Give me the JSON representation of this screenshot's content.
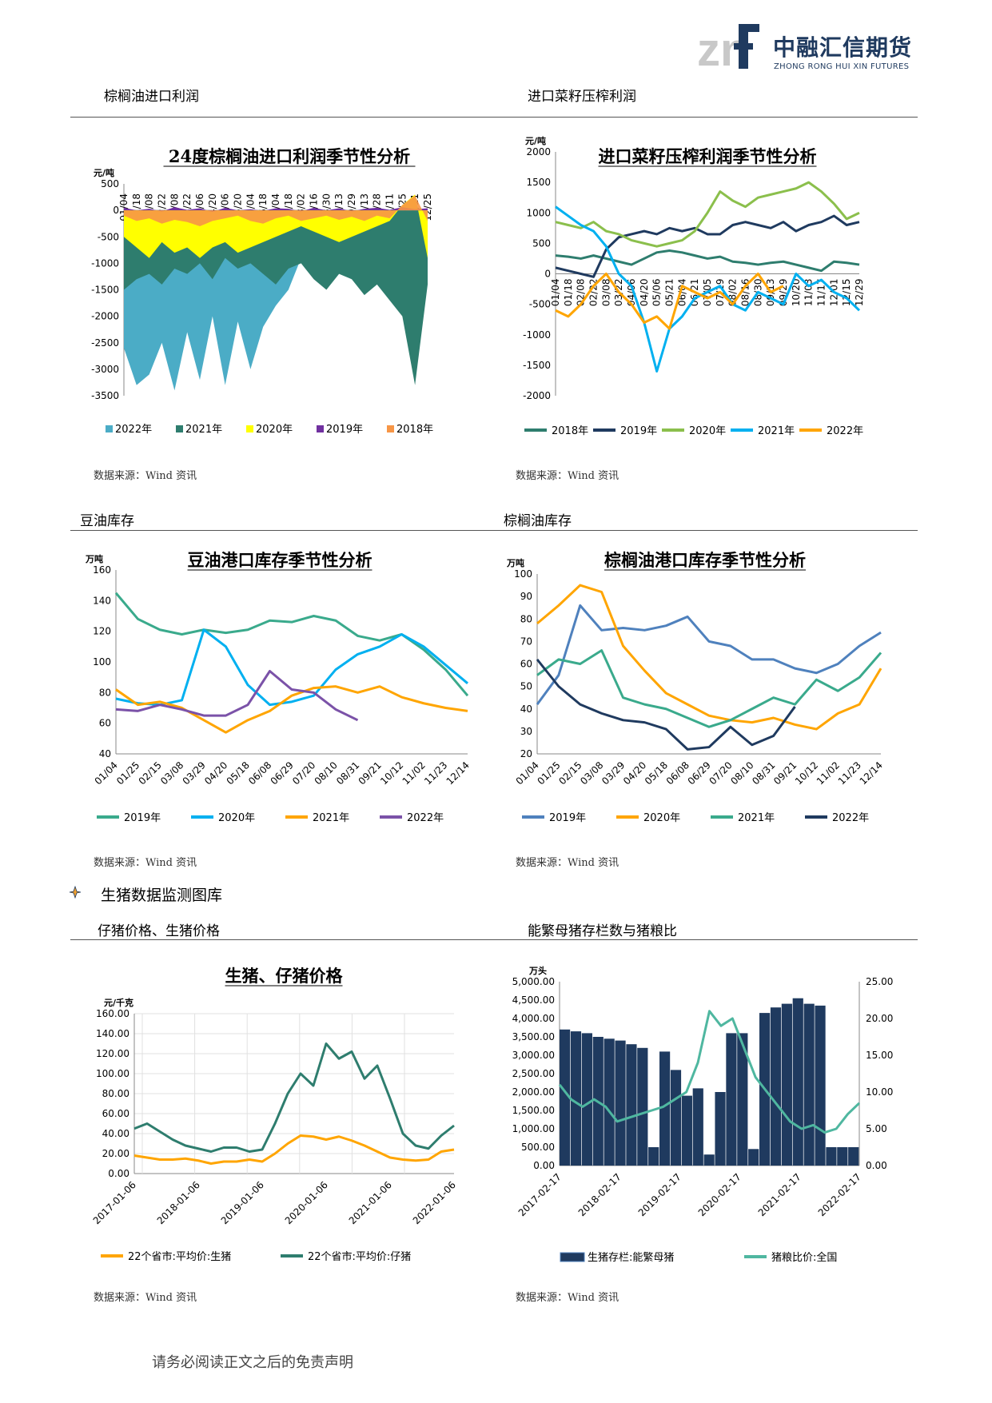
{
  "header": {
    "logo_cn": "中融汇信期货",
    "logo_en": "ZHONG RONG HUI XIN FUTURES"
  },
  "sections": {
    "s1_left": "棕榈油进口利润",
    "s1_right": "进口菜籽压榨利润",
    "s2_left": "豆油库存",
    "s2_right": "棕榈油库存",
    "hog_heading": "生猪数据监测图库",
    "s3_left": "仔猪价格、生猪价格",
    "s3_right": "能繁母猪存栏数与猪粮比"
  },
  "source_text": "数据来源：Wind 资讯",
  "footer": "请务必阅读正文之后的免责声明",
  "chart_data": [
    {
      "id": "palm-import-profit",
      "type": "area",
      "title": "24度棕榈油进口利润季节性分析",
      "unit": "元/吨",
      "ylim": [
        -3500,
        500
      ],
      "yticks": [
        "500",
        "0",
        "-500",
        "-1000",
        "-1500",
        "-2000",
        "-2500",
        "-3000",
        "-3500"
      ],
      "xticks": [
        "01/04",
        "01/18",
        "02/08",
        "02/22",
        "03/08",
        "03/22",
        "04/06",
        "04/20",
        "05/06",
        "05/20",
        "06/04",
        "06/18",
        "07/04",
        "07/18",
        "08/02",
        "08/16",
        "08/30",
        "09/13",
        "09/29",
        "10/13",
        "10/28",
        "11/11",
        "11/25",
        "12/11",
        "12/25"
      ],
      "series": [
        {
          "name": "2022年",
          "color": "#4bacc6",
          "values": [
            -2600,
            -3300,
            -3100,
            -2500,
            -3400,
            -2300,
            -3200,
            -2000,
            -3300,
            -2100,
            -3000,
            -2200,
            -1800,
            -1500,
            -900,
            -700,
            -1100,
            -600,
            -400,
            -700,
            -500,
            -600,
            -600,
            -400,
            -400
          ]
        },
        {
          "name": "2021年",
          "color": "#2e7d6e",
          "values": [
            -1500,
            -1300,
            -1200,
            -1400,
            -1100,
            -1200,
            -1000,
            -1300,
            -900,
            -1100,
            -1000,
            -1200,
            -1400,
            -1100,
            -1000,
            -1300,
            -1500,
            -1200,
            -1300,
            -1600,
            -1400,
            -1700,
            -2000,
            -3300,
            -1400
          ]
        },
        {
          "name": "2020年",
          "color": "#ffff00",
          "values": [
            -500,
            -700,
            -900,
            -600,
            -800,
            -700,
            -900,
            -700,
            -600,
            -800,
            -700,
            -600,
            -500,
            -400,
            -300,
            -400,
            -500,
            -600,
            -500,
            -400,
            -300,
            -200,
            100,
            300,
            -900
          ]
        },
        {
          "name": "2019年",
          "color": "#7030a0",
          "values": [
            50,
            0,
            30,
            -20,
            60,
            10,
            40,
            -30,
            50,
            0,
            20,
            -10,
            40,
            30,
            -20,
            50,
            0,
            40,
            -20,
            30,
            50,
            10,
            60,
            20,
            40
          ]
        },
        {
          "name": "2018年",
          "color": "#f79646",
          "values": [
            -100,
            -200,
            -150,
            -250,
            -180,
            -220,
            -300,
            -200,
            -150,
            -100,
            -200,
            -250,
            -150,
            -100,
            -200,
            -150,
            -100,
            -180,
            -120,
            -200,
            -100,
            -150,
            100,
            280,
            -200
          ]
        }
      ]
    },
    {
      "id": "rapeseed-crush-profit",
      "type": "line",
      "title": "进口菜籽压榨利润季节性分析",
      "unit": "元/吨",
      "ylim": [
        -2000,
        2000
      ],
      "yticks": [
        "2000",
        "1500",
        "1000",
        "500",
        "0",
        "-500",
        "-1000",
        "-1500",
        "-2000"
      ],
      "xticks": [
        "01/04",
        "01/18",
        "02/08",
        "02/22",
        "03/08",
        "03/22",
        "04/06",
        "04/20",
        "05/06",
        "05/21",
        "06/04",
        "06/21",
        "07/05",
        "07/19",
        "08/02",
        "08/16",
        "08/30",
        "09/13",
        "09/29",
        "10/20",
        "11/03",
        "11/17",
        "12/01",
        "12/15",
        "12/29"
      ],
      "series": [
        {
          "name": "2018年",
          "color": "#2e7d6e",
          "values": [
            300,
            280,
            250,
            300,
            250,
            200,
            150,
            250,
            350,
            380,
            350,
            300,
            250,
            280,
            200,
            180,
            150,
            180,
            200,
            150,
            100,
            50,
            200,
            180,
            150
          ]
        },
        {
          "name": "2019年",
          "color": "#1f3a5f",
          "values": [
            100,
            50,
            0,
            -50,
            400,
            600,
            650,
            700,
            650,
            750,
            700,
            750,
            650,
            650,
            800,
            850,
            800,
            750,
            850,
            700,
            800,
            850,
            950,
            800,
            850
          ]
        },
        {
          "name": "2020年",
          "color": "#8bbf4c",
          "values": [
            850,
            800,
            750,
            850,
            700,
            650,
            550,
            500,
            450,
            500,
            550,
            700,
            1000,
            1350,
            1200,
            1100,
            1250,
            1300,
            1350,
            1400,
            1500,
            1350,
            1150,
            900,
            1000
          ]
        },
        {
          "name": "2021年",
          "color": "#00b0f0",
          "values": [
            1100,
            950,
            800,
            700,
            450,
            0,
            -200,
            -800,
            -1600,
            -900,
            -700,
            -400,
            -300,
            -200,
            -500,
            -600,
            -300,
            -400,
            -500,
            0,
            -200,
            -100,
            -300,
            -400,
            -600
          ]
        },
        {
          "name": "2022年",
          "color": "#ffa500",
          "values": [
            -600,
            -700,
            -500,
            -200,
            0,
            -300,
            -500,
            -800,
            -700,
            -900,
            -200,
            -300,
            -400,
            -300,
            -500,
            -200,
            0,
            -300,
            -200,
            null,
            null,
            null,
            null,
            null,
            null
          ]
        }
      ]
    },
    {
      "id": "soy-oil-port-stock",
      "type": "line",
      "title": "豆油港口库存季节性分析",
      "unit": "万吨",
      "ylim": [
        40,
        160
      ],
      "yticks": [
        "160",
        "140",
        "120",
        "100",
        "80",
        "60",
        "40"
      ],
      "xticks": [
        "01/04",
        "01/25",
        "02/15",
        "03/08",
        "03/29",
        "04/20",
        "05/18",
        "06/08",
        "06/29",
        "07/20",
        "08/10",
        "08/31",
        "09/21",
        "10/12",
        "11/02",
        "11/23",
        "12/14"
      ],
      "series": [
        {
          "name": "2019年",
          "color": "#3aaa8c",
          "values": [
            145,
            128,
            121,
            118,
            121,
            119,
            121,
            127,
            126,
            130,
            127,
            117,
            114,
            118,
            108,
            95,
            78
          ]
        },
        {
          "name": "2020年",
          "color": "#00b0f0",
          "values": [
            76,
            73,
            72,
            75,
            121,
            110,
            85,
            72,
            74,
            78,
            95,
            105,
            110,
            118,
            110,
            98,
            86
          ]
        },
        {
          "name": "2021年",
          "color": "#ffa500",
          "values": [
            82,
            72,
            74,
            70,
            62,
            54,
            62,
            68,
            78,
            83,
            84,
            80,
            84,
            77,
            73,
            70,
            68
          ]
        },
        {
          "name": "2022年",
          "color": "#7b52a8",
          "values": [
            69,
            68,
            72,
            69,
            65,
            65,
            72,
            94,
            82,
            80,
            69,
            62,
            null,
            null,
            null,
            null,
            null
          ]
        }
      ]
    },
    {
      "id": "palm-oil-port-stock",
      "type": "line",
      "title": "棕榈油港口库存季节性分析",
      "unit": "万吨",
      "ylim": [
        20,
        100
      ],
      "yticks": [
        "100",
        "90",
        "80",
        "70",
        "60",
        "50",
        "40",
        "30",
        "20"
      ],
      "xticks": [
        "01/04",
        "01/25",
        "02/15",
        "03/08",
        "03/29",
        "04/20",
        "05/18",
        "06/08",
        "06/29",
        "07/20",
        "08/10",
        "08/31",
        "09/21",
        "10/12",
        "11/02",
        "11/23",
        "12/14"
      ],
      "series": [
        {
          "name": "2019年",
          "color": "#4f81bd",
          "values": [
            42,
            55,
            86,
            75,
            76,
            75,
            77,
            81,
            70,
            68,
            62,
            62,
            58,
            56,
            60,
            68,
            74
          ]
        },
        {
          "name": "2020年",
          "color": "#ffa500",
          "values": [
            78,
            86,
            95,
            92,
            68,
            57,
            47,
            42,
            37,
            35,
            34,
            36,
            33,
            31,
            38,
            42,
            58
          ]
        },
        {
          "name": "2021年",
          "color": "#3aaa8c",
          "values": [
            55,
            62,
            60,
            66,
            45,
            42,
            40,
            36,
            32,
            35,
            40,
            45,
            42,
            53,
            48,
            54,
            65
          ]
        },
        {
          "name": "2022年",
          "color": "#1f3a5f",
          "values": [
            62,
            50,
            42,
            38,
            35,
            34,
            31,
            22,
            23,
            32,
            24,
            28,
            41,
            null,
            null,
            null,
            null
          ]
        }
      ]
    },
    {
      "id": "hog-piglet-price",
      "type": "line",
      "title": "生猪、仔猪价格",
      "unit": "元/千克",
      "ylim": [
        0,
        160
      ],
      "yticks": [
        "160.00",
        "140.00",
        "120.00",
        "100.00",
        "80.00",
        "60.00",
        "40.00",
        "20.00",
        "0.00"
      ],
      "xticks": [
        "2017-01-06",
        "2018-01-06",
        "2019-01-06",
        "2020-01-06",
        "2021-01-06",
        "2022-01-06"
      ],
      "series": [
        {
          "name": "22个省市:平均价:生猪",
          "color": "#ffa500",
          "values": [
            18,
            16,
            14,
            14,
            15,
            13,
            10,
            12,
            12,
            14,
            12,
            20,
            30,
            38,
            37,
            34,
            37,
            33,
            28,
            22,
            16,
            14,
            13,
            14,
            22,
            24
          ]
        },
        {
          "name": "22个省市:平均价:仔猪",
          "color": "#2e7d6e",
          "values": [
            45,
            50,
            42,
            34,
            28,
            25,
            22,
            26,
            26,
            22,
            24,
            50,
            80,
            100,
            88,
            130,
            115,
            122,
            95,
            108,
            75,
            40,
            28,
            25,
            38,
            48
          ]
        }
      ]
    },
    {
      "id": "sow-inventory-hog-grain-ratio",
      "type": "bar",
      "title": "",
      "unit": "万头",
      "ylim": [
        0,
        5000
      ],
      "y2lim": [
        0,
        25
      ],
      "yticks": [
        "5,000.00",
        "4,500.00",
        "4,000.00",
        "3,500.00",
        "3,000.00",
        "2,500.00",
        "2,000.00",
        "1,500.00",
        "1,000.00",
        "500.00",
        "0.00"
      ],
      "y2ticks": [
        "25.00",
        "20.00",
        "15.00",
        "10.00",
        "5.00",
        "0.00"
      ],
      "xticks": [
        "2017-02-17",
        "2018-02-17",
        "2019-02-17",
        "2020-02-17",
        "2021-02-17",
        "2022-02-17"
      ],
      "series": [
        {
          "name": "生猪存栏:能繁母猪",
          "color": "#1f3a5f",
          "values": [
            3700,
            3650,
            3600,
            3500,
            3450,
            3400,
            3300,
            3200,
            500,
            3100,
            2600,
            1900,
            2100,
            300,
            2000,
            3600,
            3600,
            450,
            4150,
            4300,
            4400,
            4550,
            4400,
            4350,
            500,
            500,
            500
          ]
        },
        {
          "name": "猪粮比价:全国",
          "color": "#4fb7a0",
          "values": [
            11,
            9,
            8,
            9,
            8,
            6,
            6.5,
            7,
            7.5,
            8,
            9,
            10,
            14,
            21,
            19,
            20,
            16,
            12,
            10,
            8,
            6,
            5,
            5.5,
            4.5,
            5,
            7,
            8.5
          ]
        }
      ]
    }
  ]
}
